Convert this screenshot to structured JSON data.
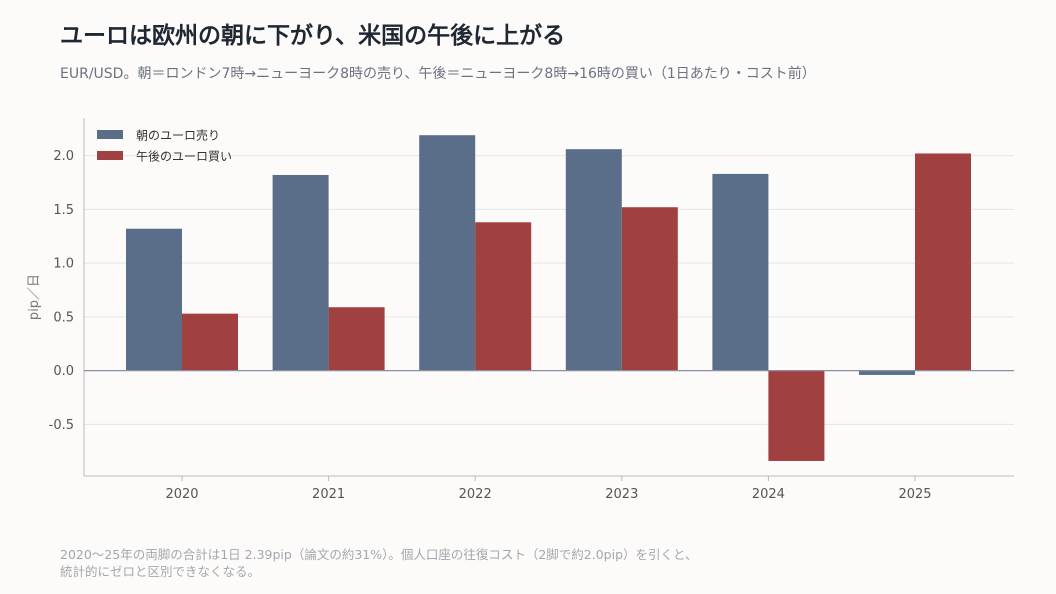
{
  "title": "ユーロは欧州の朝に下がり、米国の午後に上がる",
  "subtitle": "EUR/USD。朝＝ロンドン7時→ニューヨーク8時の売り、午後＝ニューヨーク8時→16時の買い（1日あたり・コスト前）",
  "footnote": {
    "line1": "2020～25年の両脚の合計は1日 2.39pip（論文の約31%）。個人口座の往復コスト（2脚で約2.0pip）を引くと、",
    "line2": "統計的にゼロと区別できなくなる。"
  },
  "colors": {
    "morning": "#5a6e8a",
    "afternoon": "#a04040",
    "grid": "#e6e6e6",
    "zero": "#8a8fa0",
    "axis": "#bbbbbb"
  },
  "chart_data": {
    "type": "bar",
    "categories": [
      "2020",
      "2021",
      "2022",
      "2023",
      "2024",
      "2025"
    ],
    "series": [
      {
        "name": "朝のユーロ売り",
        "values": [
          1.32,
          1.82,
          2.19,
          2.06,
          1.83,
          -0.04
        ]
      },
      {
        "name": "午後のユーロ買い",
        "values": [
          0.53,
          0.59,
          1.38,
          1.52,
          -0.84,
          2.02
        ]
      }
    ],
    "ylabel": "pip／日",
    "ylim": [
      -0.98,
      2.35
    ],
    "yticks": [
      -0.5,
      0.0,
      0.5,
      1.0,
      1.5,
      2.0
    ],
    "ytick_labels": [
      "-0.5",
      "0.0",
      "0.5",
      "1.0",
      "1.5",
      "2.0"
    ],
    "grid": true,
    "legend_position": "top-left"
  }
}
